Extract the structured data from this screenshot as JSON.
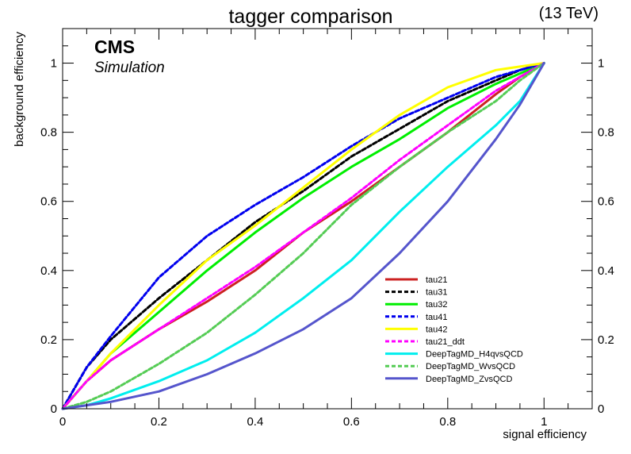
{
  "chart_data": {
    "type": "line",
    "title": "tagger comparison",
    "energy_label": "(13 TeV)",
    "experiment_label": "CMS",
    "experiment_sublabel": "Simulation",
    "xlabel": "signal efficiency",
    "ylabel": "background efficiency",
    "xlim": [
      0,
      1.1
    ],
    "ylim": [
      0,
      1.1
    ],
    "xticks": [
      0,
      0.2,
      0.4,
      0.6,
      0.8,
      1
    ],
    "xtick_labels": [
      "0",
      "0.2",
      "0.4",
      "0.6",
      "0.8",
      "1"
    ],
    "yticks": [
      0,
      0.2,
      0.4,
      0.6,
      0.8,
      1
    ],
    "ytick_labels": [
      "0",
      "0.2",
      "0.4",
      "0.6",
      "0.8",
      "1"
    ],
    "grid": false,
    "legend_position": "bottom-right",
    "series": [
      {
        "name": "tau21",
        "color": "#cc2222",
        "dashed": false,
        "x": [
          0,
          0.05,
          0.1,
          0.2,
          0.3,
          0.4,
          0.5,
          0.6,
          0.7,
          0.8,
          0.9,
          0.95,
          1
        ],
        "y": [
          0,
          0.08,
          0.14,
          0.23,
          0.31,
          0.4,
          0.51,
          0.6,
          0.7,
          0.8,
          0.91,
          0.96,
          1
        ]
      },
      {
        "name": "tau31",
        "color": "#000000",
        "dashed": true,
        "x": [
          0,
          0.05,
          0.1,
          0.2,
          0.3,
          0.4,
          0.5,
          0.6,
          0.7,
          0.8,
          0.9,
          0.95,
          1
        ],
        "y": [
          0,
          0.12,
          0.2,
          0.32,
          0.43,
          0.54,
          0.63,
          0.73,
          0.81,
          0.89,
          0.95,
          0.98,
          1
        ]
      },
      {
        "name": "tau32",
        "color": "#00ee00",
        "dashed": false,
        "x": [
          0,
          0.05,
          0.1,
          0.2,
          0.3,
          0.4,
          0.5,
          0.6,
          0.7,
          0.8,
          0.9,
          0.95,
          1
        ],
        "y": [
          0,
          0.08,
          0.16,
          0.28,
          0.4,
          0.51,
          0.61,
          0.7,
          0.78,
          0.87,
          0.94,
          0.97,
          1
        ]
      },
      {
        "name": "tau41",
        "color": "#0000ee",
        "dashed": true,
        "x": [
          0,
          0.05,
          0.1,
          0.2,
          0.3,
          0.4,
          0.5,
          0.6,
          0.7,
          0.8,
          0.9,
          0.95,
          1
        ],
        "y": [
          0,
          0.12,
          0.21,
          0.38,
          0.5,
          0.59,
          0.67,
          0.76,
          0.84,
          0.9,
          0.96,
          0.98,
          1
        ]
      },
      {
        "name": "tau42",
        "color": "#ffff00",
        "dashed": false,
        "x": [
          0,
          0.05,
          0.1,
          0.2,
          0.3,
          0.4,
          0.5,
          0.6,
          0.7,
          0.8,
          0.9,
          0.95,
          1
        ],
        "y": [
          0,
          0.08,
          0.16,
          0.3,
          0.43,
          0.53,
          0.64,
          0.75,
          0.85,
          0.93,
          0.98,
          0.99,
          1
        ]
      },
      {
        "name": "tau21_ddt",
        "color": "#ff00ff",
        "dashed": true,
        "x": [
          0,
          0.05,
          0.1,
          0.2,
          0.3,
          0.4,
          0.5,
          0.6,
          0.7,
          0.8,
          0.9,
          0.95,
          1
        ],
        "y": [
          0,
          0.08,
          0.14,
          0.23,
          0.32,
          0.41,
          0.51,
          0.61,
          0.72,
          0.82,
          0.92,
          0.96,
          1
        ]
      },
      {
        "name": "DeepTagMD_H4qvsQCD",
        "color": "#00eeee",
        "dashed": false,
        "x": [
          0,
          0.05,
          0.1,
          0.2,
          0.3,
          0.4,
          0.5,
          0.6,
          0.7,
          0.8,
          0.9,
          0.95,
          1
        ],
        "y": [
          0,
          0.01,
          0.03,
          0.08,
          0.14,
          0.22,
          0.32,
          0.43,
          0.57,
          0.7,
          0.82,
          0.89,
          1
        ]
      },
      {
        "name": "DeepTagMD_WvsQCD",
        "color": "#55cc55",
        "dashed": true,
        "x": [
          0,
          0.05,
          0.1,
          0.2,
          0.3,
          0.4,
          0.5,
          0.6,
          0.7,
          0.8,
          0.9,
          0.95,
          1
        ],
        "y": [
          0,
          0.02,
          0.05,
          0.13,
          0.22,
          0.33,
          0.45,
          0.59,
          0.7,
          0.8,
          0.89,
          0.95,
          1
        ]
      },
      {
        "name": "DeepTagMD_ZvsQCD",
        "color": "#5555cc",
        "dashed": false,
        "x": [
          0,
          0.05,
          0.1,
          0.2,
          0.3,
          0.4,
          0.5,
          0.6,
          0.7,
          0.8,
          0.9,
          0.95,
          1
        ],
        "y": [
          0,
          0.01,
          0.02,
          0.05,
          0.1,
          0.16,
          0.23,
          0.32,
          0.45,
          0.6,
          0.78,
          0.88,
          1
        ]
      }
    ]
  }
}
